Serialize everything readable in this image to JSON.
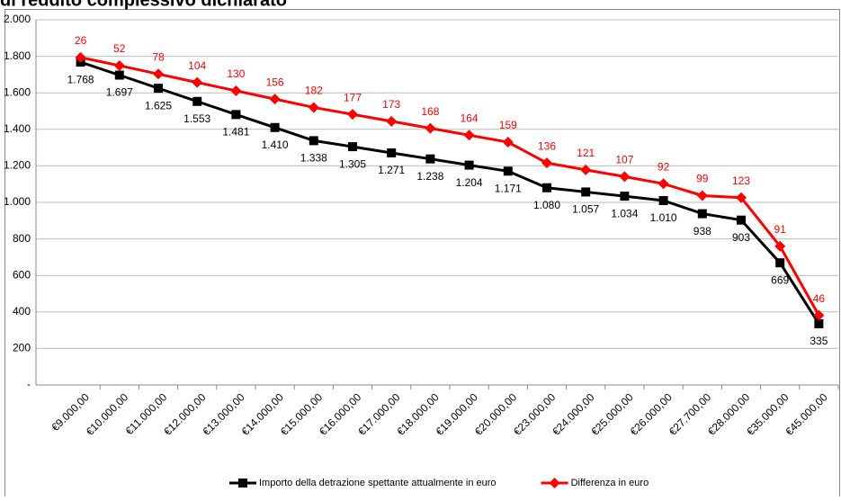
{
  "chart_data": {
    "type": "line",
    "stacked": true,
    "title": "di reddito complessivo dichiarato",
    "categories": [
      "€9.000,00",
      "€10.000,00",
      "€11.000,00",
      "€12.000,00",
      "€13.000,00",
      "€14.000,00",
      "€15.000,00",
      "€16.000,00",
      "€17.000,00",
      "€18.000,00",
      "€19.000,00",
      "€20.000,00",
      "€23.000,00",
      "€24.000,00",
      "€25.000,00",
      "€26.000,00",
      "€27.700,00",
      "€28.000,00",
      "€35.000,00",
      "€45.000,00"
    ],
    "series": [
      {
        "name": "Importo della detrazione spettante attualmente in euro",
        "color": "#000000",
        "marker": "square",
        "values": [
          1768,
          1697,
          1625,
          1553,
          1481,
          1410,
          1338,
          1305,
          1271,
          1238,
          1204,
          1171,
          1080,
          1057,
          1034,
          1010,
          938,
          903,
          669,
          335
        ],
        "value_labels": [
          "1.768",
          "1.697",
          "1.625",
          "1.553",
          "1.481",
          "1.410",
          "1.338",
          "1.305",
          "1.271",
          "1.238",
          "1.204",
          "1.171",
          "1.080",
          "1.057",
          "1.034",
          "1.010",
          "938",
          "903",
          "669",
          "335"
        ]
      },
      {
        "name": "Differenza in euro",
        "color": "#ff0000",
        "marker": "diamond",
        "values": [
          26,
          52,
          78,
          104,
          130,
          156,
          182,
          177,
          173,
          168,
          164,
          159,
          136,
          121,
          107,
          92,
          99,
          123,
          91,
          46
        ]
      }
    ],
    "ylim": [
      0,
      2000
    ],
    "yticks": [
      {
        "value": 0,
        "label": "-"
      },
      200,
      400,
      600,
      800,
      {
        "value": 1000,
        "label": "1.000"
      },
      {
        "value": 1200,
        "label": "1.200"
      },
      {
        "value": 1400,
        "label": "1.400"
      },
      {
        "value": 1600,
        "label": "1.600"
      },
      {
        "value": 1800,
        "label": "1.800"
      },
      {
        "value": 2000,
        "label": "2.000"
      }
    ],
    "grid": true,
    "legend": "bottom"
  }
}
